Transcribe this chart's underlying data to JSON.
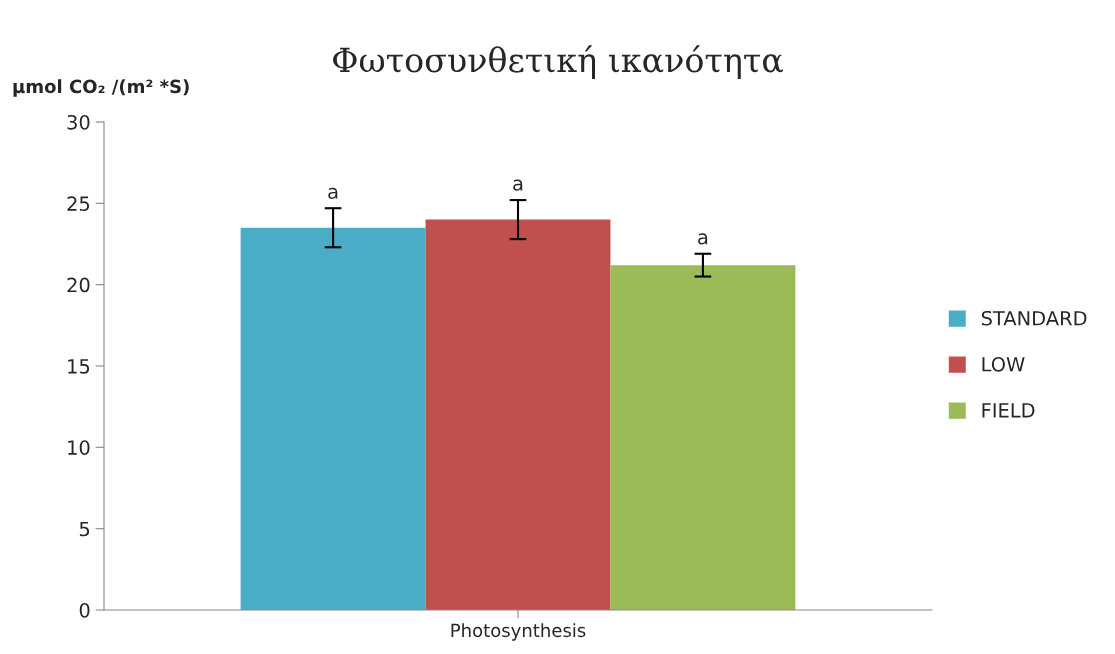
{
  "chart_data": {
    "type": "bar",
    "title": "Φωτοσυνθετική ικανότητα",
    "ylabel": "μmol CO₂ /(m² *S)",
    "categories": [
      "Photosynthesis"
    ],
    "series": [
      {
        "name": "STANDARD",
        "color": "#4bacc6",
        "values": [
          23.5
        ],
        "errors": [
          1.2
        ]
      },
      {
        "name": "LOW",
        "color": "#c0504d",
        "values": [
          24.0
        ],
        "errors": [
          1.2
        ]
      },
      {
        "name": "FIELD",
        "color": "#9bbb59",
        "values": [
          21.2
        ],
        "errors": [
          0.7
        ]
      }
    ],
    "annotations": [
      "a",
      "a",
      "a"
    ],
    "ylim": [
      0,
      30
    ],
    "yticks": [
      0,
      5,
      10,
      15,
      20,
      25,
      30
    ],
    "grid": false,
    "legend": "right"
  }
}
